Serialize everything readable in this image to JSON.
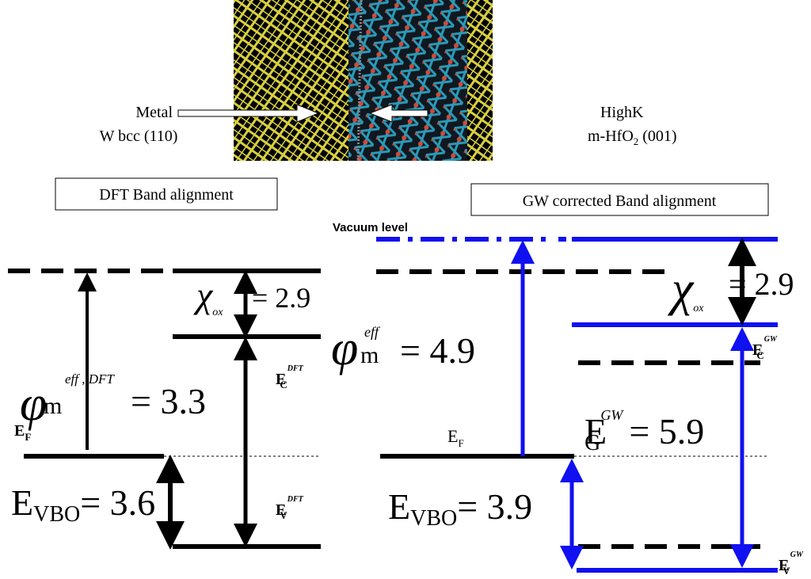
{
  "image": {
    "left_label": {
      "line1": "Metal",
      "line2": "W bcc (110)"
    },
    "right_label": {
      "line1": "HighK",
      "line2_main": "m-HfO",
      "line2_sub": "2",
      "line2_tail": " (001)"
    }
  },
  "dft": {
    "title": "DFT Band alignment",
    "chi": "χ",
    "chi_sub": "ox",
    "chi_value": "= 2.9",
    "phi": "φ",
    "phi_sup": "eff , DFT",
    "phi_sub": "m",
    "phi_value": "= 3.3",
    "ef": "E",
    "ef_sub": "F",
    "ec": "E",
    "ec_sub": "C",
    "ec_sup": "DFT",
    "ev": "E",
    "ev_sub": "V",
    "ev_sup": "DFT",
    "vbo": "E",
    "vbo_sub": "VBO",
    "vbo_value": "= 3.6"
  },
  "gw": {
    "title": "GW corrected Band alignment",
    "vacuum": "Vacuum level",
    "phi": "φ",
    "phi_sup": "eff",
    "phi_sub": "m",
    "phi_value": "= 4.9",
    "chi": "χ",
    "chi_sub": "ox",
    "chi_value": "= 2.9",
    "ec": "E",
    "ec_sub": "C",
    "ec_sup": "GW",
    "ef": "E",
    "ef_sub": "F",
    "eg": "E",
    "eg_sub": "G",
    "eg_sup": "GW",
    "eg_value": "= 5.9",
    "vbo": "E",
    "vbo_sub": "VBO",
    "vbo_value": "= 3.9",
    "ev": "E",
    "ev_sub": "V",
    "ev_sup": "GW"
  }
}
